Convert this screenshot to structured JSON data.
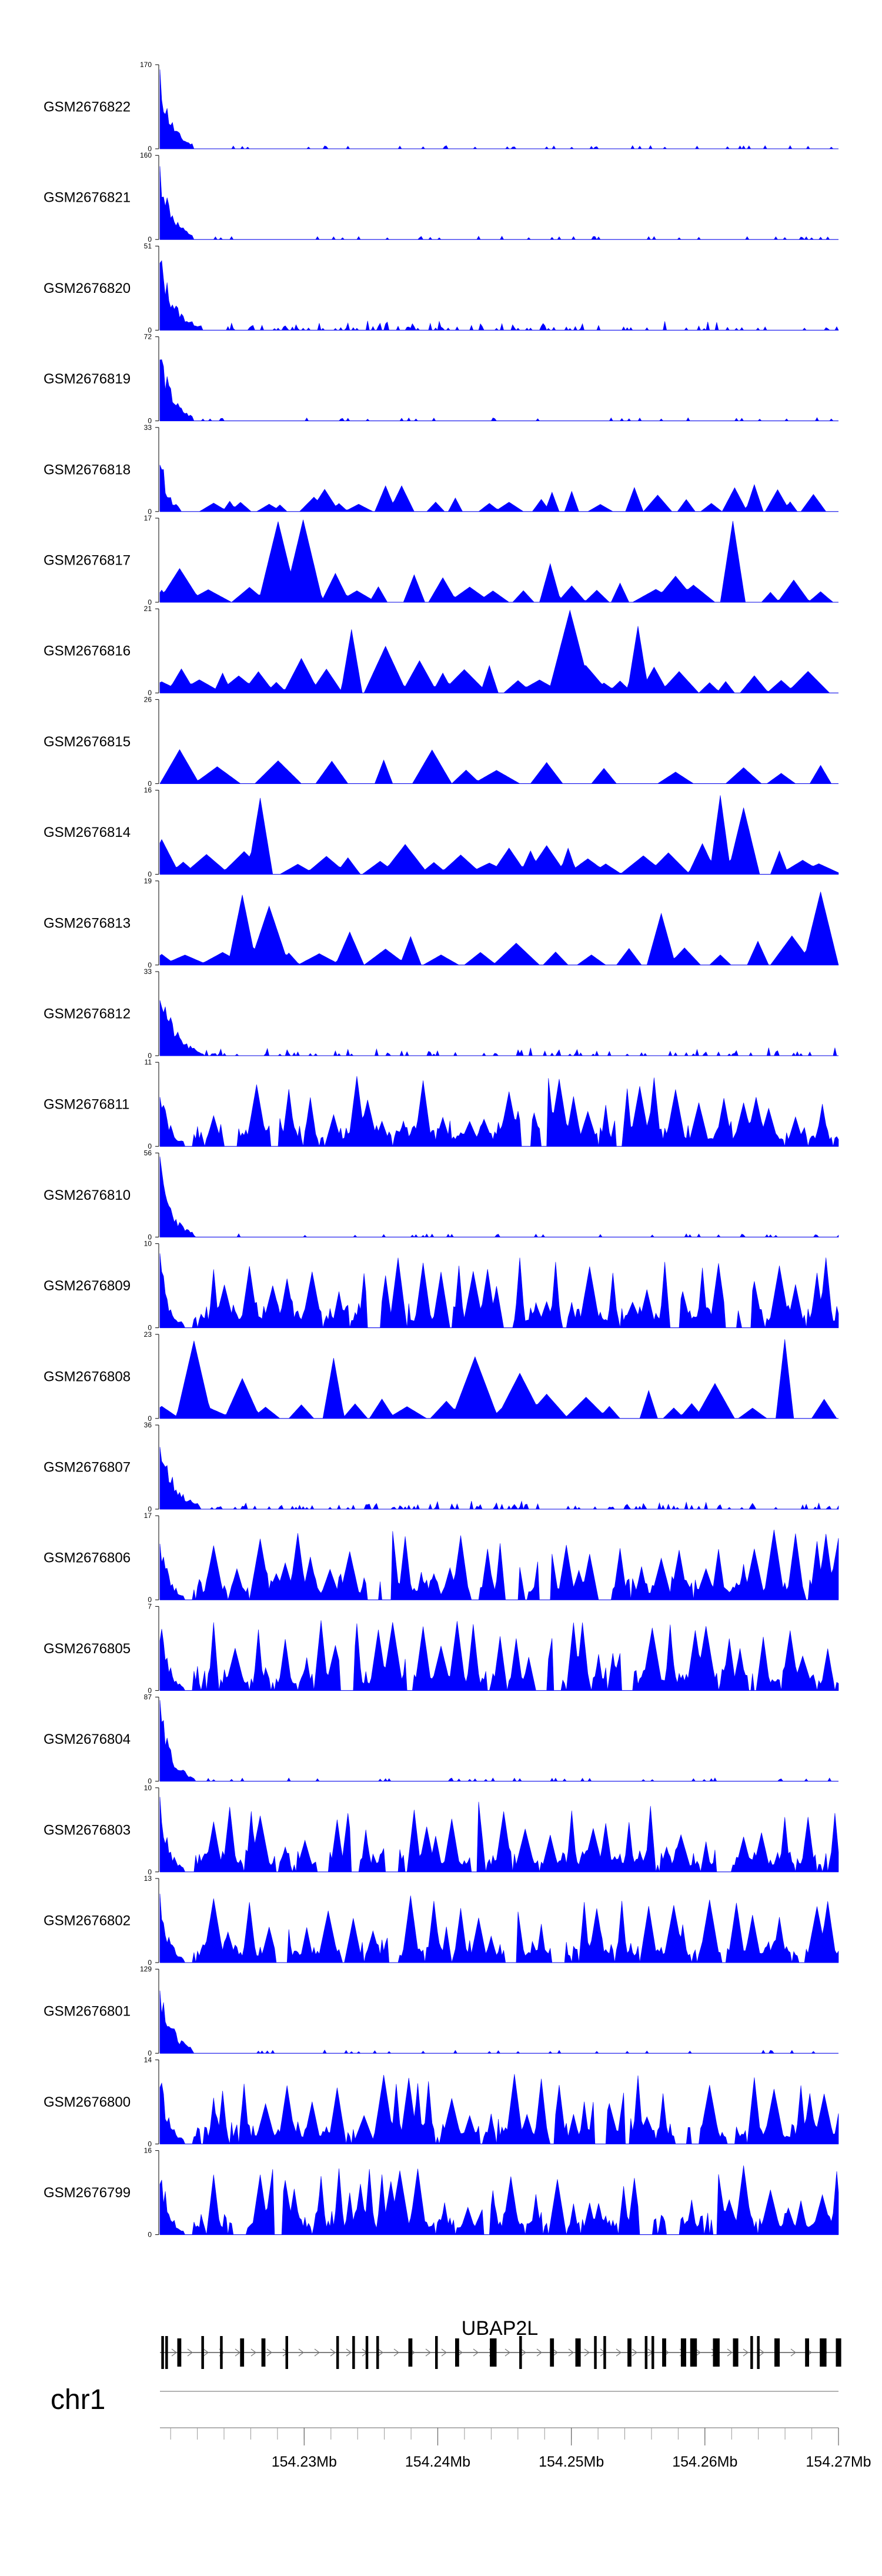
{
  "chart_data": {
    "type": "area",
    "title": "",
    "chromosome": "chr1",
    "region_mb": [
      154.2192,
      154.27
    ],
    "axis": {
      "tick_labels": [
        "154.23Mb",
        "154.24Mb",
        "154.25Mb",
        "154.26Mb",
        "154.27Mb"
      ],
      "major_ticks_mb": [
        154.23,
        154.24,
        154.25,
        154.26,
        154.27
      ],
      "minor_tick_step_mb": 0.002
    },
    "gene": {
      "name": "UBAP2L",
      "strand": "+",
      "start_mb": 154.2192,
      "end_mb": 154.27,
      "exons_mb": [
        [
          154.2193,
          154.2195
        ],
        [
          154.2196,
          154.2198
        ],
        [
          154.2205,
          154.2208
        ],
        [
          154.2223,
          154.2225
        ],
        [
          154.2237,
          154.2239
        ],
        [
          154.2252,
          154.2255
        ],
        [
          154.2268,
          154.2271
        ],
        [
          154.2286,
          154.2288
        ],
        [
          154.2324,
          154.2326
        ],
        [
          154.2336,
          154.2338
        ],
        [
          154.2346,
          154.2348
        ],
        [
          154.2354,
          154.2356
        ],
        [
          154.2378,
          154.2381
        ],
        [
          154.2398,
          154.24
        ],
        [
          154.2413,
          154.2416
        ],
        [
          154.2439,
          154.2444
        ],
        [
          154.2461,
          154.2463
        ],
        [
          154.2484,
          154.2487
        ],
        [
          154.2503,
          154.2507
        ],
        [
          154.2517,
          154.2519
        ],
        [
          154.2524,
          154.2526
        ],
        [
          154.2542,
          154.2545
        ],
        [
          154.2555,
          154.2557
        ],
        [
          154.256,
          154.2562
        ],
        [
          154.2568,
          154.2571
        ],
        [
          154.2582,
          154.2586
        ],
        [
          154.2589,
          154.2594
        ],
        [
          154.2606,
          154.2611
        ],
        [
          154.2621,
          154.2625
        ],
        [
          154.2634,
          154.2636
        ],
        [
          154.2639,
          154.2641
        ],
        [
          154.2652,
          154.2656
        ],
        [
          154.2675,
          154.2678
        ],
        [
          154.2686,
          154.2691
        ],
        [
          154.2698,
          154.2702
        ]
      ]
    },
    "series": [
      {
        "name": "GSM2676822",
        "ymax": 170,
        "profile": "promoter",
        "seed": 11
      },
      {
        "name": "GSM2676821",
        "ymax": 160,
        "profile": "promoter",
        "seed": 12
      },
      {
        "name": "GSM2676820",
        "ymax": 51,
        "profile": "promoter_mid",
        "seed": 13
      },
      {
        "name": "GSM2676819",
        "ymax": 72,
        "profile": "promoter",
        "seed": 14
      },
      {
        "name": "GSM2676818",
        "ymax": 33,
        "profile": "peaky",
        "seed": 15
      },
      {
        "name": "GSM2676817",
        "ymax": 17,
        "profile": "spiky",
        "seed": 16
      },
      {
        "name": "GSM2676816",
        "ymax": 21,
        "profile": "spiky",
        "seed": 17
      },
      {
        "name": "GSM2676815",
        "ymax": 26,
        "profile": "sparse",
        "seed": 18
      },
      {
        "name": "GSM2676814",
        "ymax": 16,
        "profile": "spiky",
        "seed": 19
      },
      {
        "name": "GSM2676813",
        "ymax": 19,
        "profile": "spiky",
        "seed": 20
      },
      {
        "name": "GSM2676812",
        "ymax": 33,
        "profile": "promoter_mid",
        "seed": 21
      },
      {
        "name": "GSM2676811",
        "ymax": 11,
        "profile": "dense",
        "seed": 22
      },
      {
        "name": "GSM2676810",
        "ymax": 56,
        "profile": "promoter",
        "seed": 23
      },
      {
        "name": "GSM2676809",
        "ymax": 10,
        "profile": "dense",
        "seed": 24
      },
      {
        "name": "GSM2676808",
        "ymax": 23,
        "profile": "spiky",
        "seed": 25
      },
      {
        "name": "GSM2676807",
        "ymax": 36,
        "profile": "promoter_mid",
        "seed": 26
      },
      {
        "name": "GSM2676806",
        "ymax": 17,
        "profile": "dense",
        "seed": 27
      },
      {
        "name": "GSM2676805",
        "ymax": 7,
        "profile": "dense",
        "seed": 28
      },
      {
        "name": "GSM2676804",
        "ymax": 87,
        "profile": "promoter",
        "seed": 29
      },
      {
        "name": "GSM2676803",
        "ymax": 10,
        "profile": "dense",
        "seed": 30
      },
      {
        "name": "GSM2676802",
        "ymax": 13,
        "profile": "dense",
        "seed": 31
      },
      {
        "name": "GSM2676801",
        "ymax": 129,
        "profile": "promoter",
        "seed": 32
      },
      {
        "name": "GSM2676800",
        "ymax": 14,
        "profile": "dense",
        "seed": 33
      },
      {
        "name": "GSM2676799",
        "ymax": 16,
        "profile": "dense",
        "seed": 34
      }
    ],
    "ymin_label": "0",
    "fill_color": "#0000ff"
  }
}
